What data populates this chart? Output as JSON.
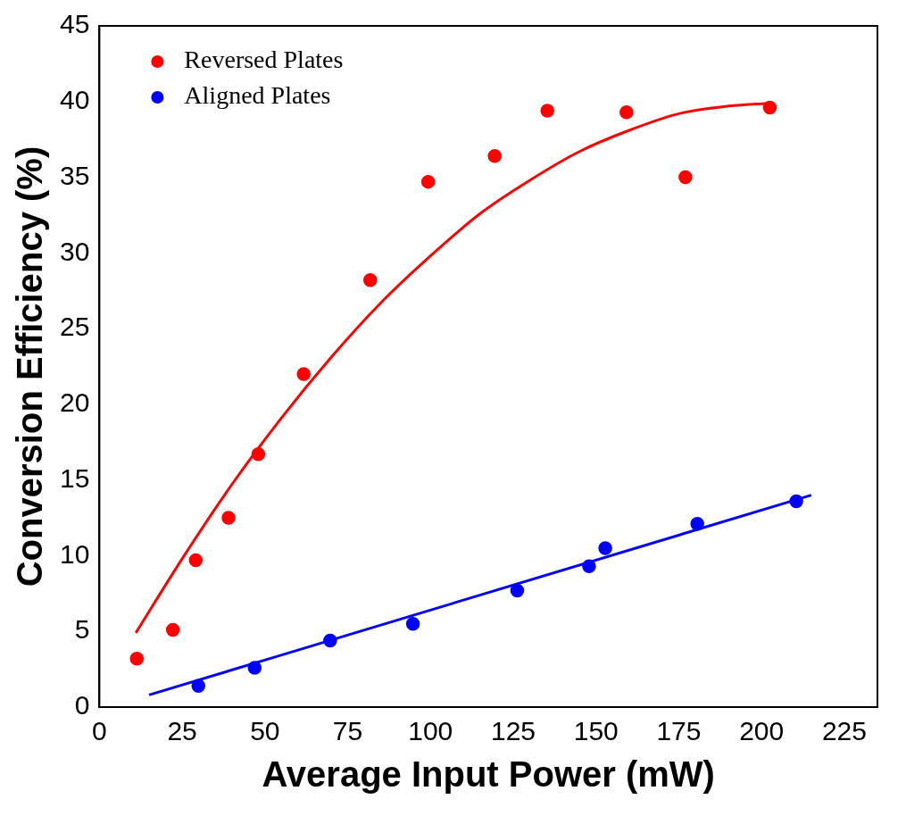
{
  "chart_data": {
    "type": "scatter",
    "xlabel": "Average Input Power (mW)",
    "ylabel": "Conversion Efficiency (%)",
    "xlim": [
      0,
      235
    ],
    "xticks": [
      0,
      25,
      50,
      75,
      100,
      125,
      150,
      175,
      200,
      225
    ],
    "ylim": [
      0,
      45
    ],
    "yticks": [
      0,
      5,
      10,
      15,
      20,
      25,
      30,
      35,
      40,
      45
    ],
    "grid": false,
    "legend": "top left",
    "marker": "circle",
    "series": [
      {
        "name": "Reversed Plates",
        "color": "#ff0000",
        "x": [
          11.3,
          22.2,
          29.1,
          39,
          48,
          61.7,
          81.8,
          99.3,
          119.4,
          135.3,
          159.2,
          177,
          202.5
        ],
        "values": [
          3.2,
          5.1,
          9.7,
          12.5,
          16.7,
          22.0,
          28.2,
          34.7,
          36.4,
          39.4,
          39.3,
          35.0,
          39.6
        ]
      },
      {
        "name": "Aligned Plates",
        "color": "#0000ff",
        "x": [
          29.9,
          46.9,
          69.7,
          94.7,
          126.2,
          147.9,
          152.8,
          180.6,
          210.5
        ],
        "values": [
          1.4,
          2.6,
          4.4,
          5.5,
          7.7,
          9.3,
          10.5,
          12.1,
          13.6
        ]
      },
      {
        "type": "line",
        "color": "#ff0000",
        "marker": "none",
        "x": [
          11,
          25,
          40,
          55,
          70,
          85,
          100,
          115,
          130,
          145,
          160,
          175,
          190,
          203
        ],
        "values": [
          4.9,
          9.8,
          14.7,
          19.1,
          23.1,
          26.7,
          29.8,
          32.6,
          34.8,
          36.7,
          38.1,
          39.2,
          39.7,
          39.9
        ]
      },
      {
        "type": "line",
        "color": "#0000ff",
        "marker": "none",
        "x": [
          15,
          215
        ],
        "values": [
          0.8,
          14.0
        ]
      }
    ]
  }
}
